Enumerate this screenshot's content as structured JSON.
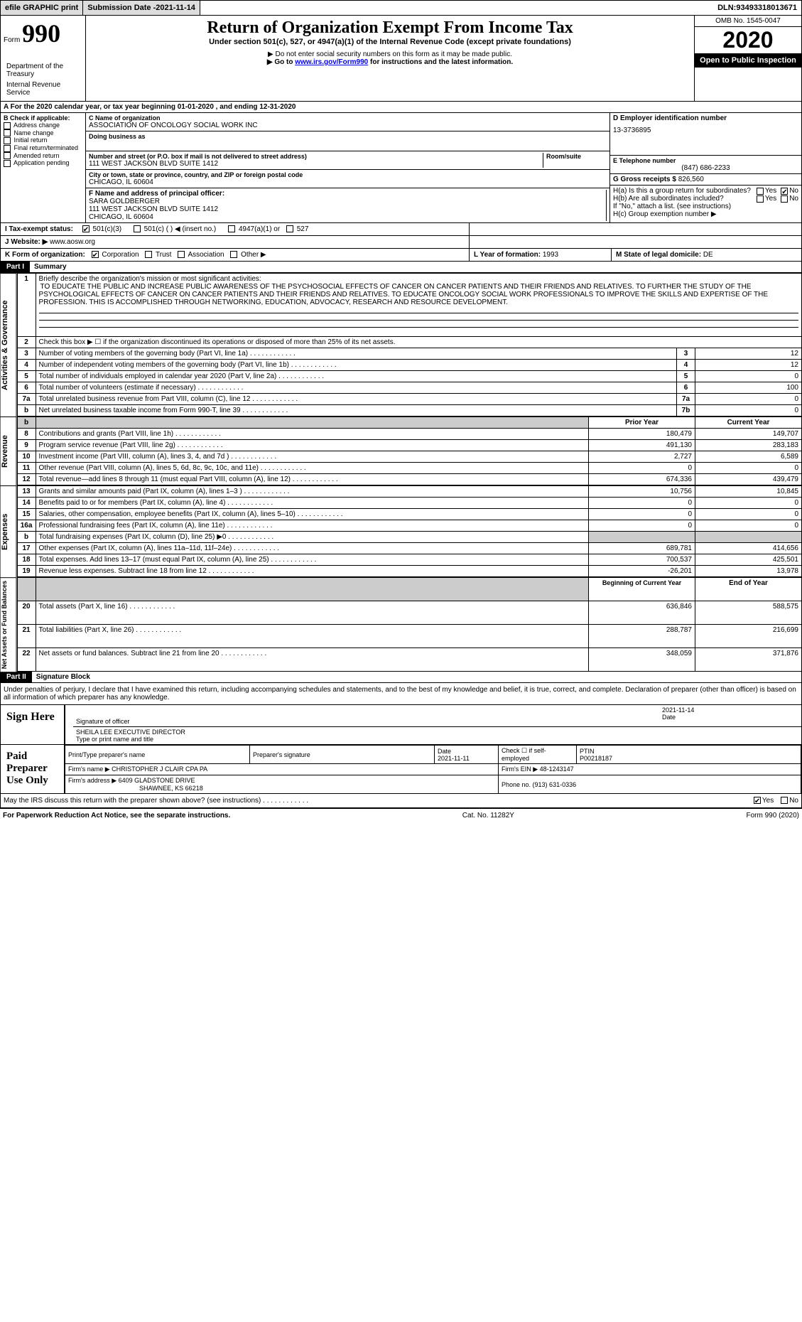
{
  "topbar": {
    "efile": "efile GRAPHIC print",
    "submission_label": "Submission Date - ",
    "submission_date": "2021-11-14",
    "dln_label": "DLN: ",
    "dln": "93493318013671"
  },
  "header": {
    "form_word": "Form",
    "form_num": "990",
    "title": "Return of Organization Exempt From Income Tax",
    "subtitle": "Under section 501(c), 527, or 4947(a)(1) of the Internal Revenue Code (except private foundations)",
    "note1": "▶ Do not enter social security numbers on this form as it may be made public.",
    "note2_pre": "▶ Go to ",
    "note2_link": "www.irs.gov/Form990",
    "note2_post": " for instructions and the latest information.",
    "dept1": "Department of the Treasury",
    "dept2": "Internal Revenue Service",
    "omb": "OMB No. 1545-0047",
    "year": "2020",
    "open": "Open to Public Inspection"
  },
  "row_a": "A For the 2020 calendar year, or tax year beginning 01-01-2020   , and ending 12-31-2020",
  "box_b": {
    "header": "B Check if applicable:",
    "items": [
      "Address change",
      "Name change",
      "Initial return",
      "Final return/terminated",
      "Amended return",
      "Application pending"
    ]
  },
  "box_c": {
    "name_label": "C Name of organization",
    "name": "ASSOCIATION OF ONCOLOGY SOCIAL WORK INC",
    "dba_label": "Doing business as",
    "dba": "",
    "street_label": "Number and street (or P.O. box if mail is not delivered to street address)",
    "room_label": "Room/suite",
    "street": "111 WEST JACKSON BLVD SUITE 1412",
    "city_label": "City or town, state or province, country, and ZIP or foreign postal code",
    "city": "CHICAGO, IL  60604"
  },
  "box_d": {
    "label": "D Employer identification number",
    "value": "13-3736895"
  },
  "box_e": {
    "label": "E Telephone number",
    "value": "(847) 686-2233"
  },
  "box_g": {
    "label": "G Gross receipts $ ",
    "value": "826,560"
  },
  "box_f": {
    "label": "F  Name and address of principal officer:",
    "name": "SARA GOLDBERGER",
    "street": "111 WEST JACKSON BLVD SUITE 1412",
    "city": "CHICAGO, IL  60604"
  },
  "box_h": {
    "ha_label": "H(a)  Is this a group return for subordinates?",
    "hb_label": "H(b)  Are all subordinates included?",
    "hb_note": "If \"No,\" attach a list. (see instructions)",
    "hc_label": "H(c)  Group exemption number ▶",
    "yes": "Yes",
    "no": "No"
  },
  "row_i": {
    "label": "I   Tax-exempt status:",
    "opt1": "501(c)(3)",
    "opt2": "501(c) (  ) ◀ (insert no.)",
    "opt3": "4947(a)(1) or",
    "opt4": "527"
  },
  "row_j": {
    "label": "J   Website: ▶ ",
    "value": "www.aosw.org"
  },
  "row_k": {
    "label": "K Form of organization:",
    "opt1": "Corporation",
    "opt2": "Trust",
    "opt3": "Association",
    "opt4": "Other ▶"
  },
  "row_l": {
    "label": "L Year of formation: ",
    "value": "1993"
  },
  "row_m": {
    "label": "M State of legal domicile: ",
    "value": "DE"
  },
  "part1": {
    "num": "Part I",
    "title": "Summary",
    "side_gov": "Activities & Governance",
    "side_rev": "Revenue",
    "side_exp": "Expenses",
    "side_net": "Net Assets or Fund Balances",
    "q1_label": "Briefly describe the organization's mission or most significant activities:",
    "q1_text": "TO EDUCATE THE PUBLIC AND INCREASE PUBLIC AWARENESS OF THE PSYCHOSOCIAL EFFECTS OF CANCER ON CANCER PATIENTS AND THEIR FRIENDS AND RELATIVES. TO FURTHER THE STUDY OF THE PSYCHOLOGICAL EFFECTS OF CANCER ON CANCER PATIENTS AND THEIR FRIENDS AND RELATIVES. TO EDUCATE ONCOLOGY SOCIAL WORK PROFESSIONALS TO IMPROVE THE SKILLS AND EXPERTISE OF THE PROFESSION. THIS IS ACCOMPLISHED THROUGH NETWORKING, EDUCATION, ADVOCACY, RESEARCH AND RESOURCE DEVELOPMENT.",
    "q2": "Check this box ▶ ☐  if the organization discontinued its operations or disposed of more than 25% of its net assets.",
    "rows_gov": [
      {
        "n": "3",
        "label": "Number of voting members of the governing body (Part VI, line 1a)",
        "cn": "3",
        "v": "12"
      },
      {
        "n": "4",
        "label": "Number of independent voting members of the governing body (Part VI, line 1b)",
        "cn": "4",
        "v": "12"
      },
      {
        "n": "5",
        "label": "Total number of individuals employed in calendar year 2020 (Part V, line 2a)",
        "cn": "5",
        "v": "0"
      },
      {
        "n": "6",
        "label": "Total number of volunteers (estimate if necessary)",
        "cn": "6",
        "v": "100"
      },
      {
        "n": "7a",
        "label": "Total unrelated business revenue from Part VIII, column (C), line 12",
        "cn": "7a",
        "v": "0"
      },
      {
        "n": "b",
        "label": "Net unrelated business taxable income from Form 990-T, line 39",
        "cn": "7b",
        "v": "0"
      }
    ],
    "col_prior": "Prior Year",
    "col_current": "Current Year",
    "rows_rev": [
      {
        "n": "8",
        "label": "Contributions and grants (Part VIII, line 1h)",
        "p": "180,479",
        "c": "149,707"
      },
      {
        "n": "9",
        "label": "Program service revenue (Part VIII, line 2g)",
        "p": "491,130",
        "c": "283,183"
      },
      {
        "n": "10",
        "label": "Investment income (Part VIII, column (A), lines 3, 4, and 7d )",
        "p": "2,727",
        "c": "6,589"
      },
      {
        "n": "11",
        "label": "Other revenue (Part VIII, column (A), lines 5, 6d, 8c, 9c, 10c, and 11e)",
        "p": "0",
        "c": "0"
      },
      {
        "n": "12",
        "label": "Total revenue—add lines 8 through 11 (must equal Part VIII, column (A), line 12)",
        "p": "674,336",
        "c": "439,479"
      }
    ],
    "rows_exp": [
      {
        "n": "13",
        "label": "Grants and similar amounts paid (Part IX, column (A), lines 1–3 )",
        "p": "10,756",
        "c": "10,845"
      },
      {
        "n": "14",
        "label": "Benefits paid to or for members (Part IX, column (A), line 4)",
        "p": "0",
        "c": "0"
      },
      {
        "n": "15",
        "label": "Salaries, other compensation, employee benefits (Part IX, column (A), lines 5–10)",
        "p": "0",
        "c": "0"
      },
      {
        "n": "16a",
        "label": "Professional fundraising fees (Part IX, column (A), line 11e)",
        "p": "0",
        "c": "0"
      },
      {
        "n": "b",
        "label": "Total fundraising expenses (Part IX, column (D), line 25) ▶0",
        "p": "",
        "c": "",
        "grey": true
      },
      {
        "n": "17",
        "label": "Other expenses (Part IX, column (A), lines 11a–11d, 11f–24e)",
        "p": "689,781",
        "c": "414,656"
      },
      {
        "n": "18",
        "label": "Total expenses. Add lines 13–17 (must equal Part IX, column (A), line 25)",
        "p": "700,537",
        "c": "425,501"
      },
      {
        "n": "19",
        "label": "Revenue less expenses. Subtract line 18 from line 12",
        "p": "-26,201",
        "c": "13,978"
      }
    ],
    "col_begin": "Beginning of Current Year",
    "col_end": "End of Year",
    "rows_net": [
      {
        "n": "20",
        "label": "Total assets (Part X, line 16)",
        "p": "636,846",
        "c": "588,575"
      },
      {
        "n": "21",
        "label": "Total liabilities (Part X, line 26)",
        "p": "288,787",
        "c": "216,699"
      },
      {
        "n": "22",
        "label": "Net assets or fund balances. Subtract line 21 from line 20",
        "p": "348,059",
        "c": "371,876"
      }
    ]
  },
  "part2": {
    "num": "Part II",
    "title": "Signature Block",
    "declaration": "Under penalties of perjury, I declare that I have examined this return, including accompanying schedules and statements, and to the best of my knowledge and belief, it is true, correct, and complete. Declaration of preparer (other than officer) is based on all information of which preparer has any knowledge.",
    "sign_here": "Sign Here",
    "sig_of_officer": "Signature of officer",
    "sig_date_label": "Date",
    "sig_date": "2021-11-14",
    "sig_name": "SHEILA LEE  EXECUTIVE DIRECTOR",
    "sig_name_label": "Type or print name and title",
    "paid": "Paid Preparer Use Only",
    "prep_name_label": "Print/Type preparer's name",
    "prep_sig_label": "Preparer's signature",
    "prep_date_label": "Date",
    "prep_date": "2021-11-11",
    "prep_check_label": "Check ☐ if self-employed",
    "ptin_label": "PTIN",
    "ptin": "P00218187",
    "firm_name_label": "Firm's name      ▶ ",
    "firm_name": "CHRISTOPHER J CLAIR CPA PA",
    "firm_ein_label": "Firm's EIN ▶ ",
    "firm_ein": "48-1243147",
    "firm_addr_label": "Firm's address ▶ ",
    "firm_addr": "6409 GLADSTONE DRIVE",
    "firm_city": "SHAWNEE, KS  66218",
    "phone_label": "Phone no. ",
    "phone": "(913) 631-0336",
    "discuss": "May the IRS discuss this return with the preparer shown above? (see instructions)",
    "yes": "Yes",
    "no": "No"
  },
  "footer": {
    "left": "For Paperwork Reduction Act Notice, see the separate instructions.",
    "mid": "Cat. No. 11282Y",
    "right": "Form 990 (2020)"
  }
}
